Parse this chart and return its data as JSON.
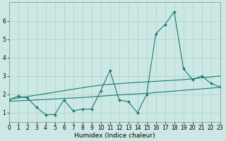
{
  "title": "",
  "xlabel": "Humidex (Indice chaleur)",
  "ylabel": "",
  "bg_color": "#cce8e4",
  "grid_color": "#aacfcb",
  "line_color": "#1a7a6e",
  "x_data": [
    0,
    1,
    2,
    3,
    4,
    5,
    6,
    7,
    8,
    9,
    10,
    11,
    12,
    13,
    14,
    15,
    16,
    17,
    18,
    19,
    20,
    21,
    22,
    23
  ],
  "y_main": [
    1.7,
    1.9,
    1.8,
    1.3,
    0.9,
    0.9,
    1.7,
    1.1,
    1.2,
    1.2,
    2.2,
    3.3,
    1.7,
    1.6,
    1.0,
    2.0,
    5.3,
    5.8,
    6.5,
    3.4,
    2.8,
    3.0,
    2.6,
    2.4
  ],
  "y_upper": [
    1.72,
    1.8,
    1.88,
    1.96,
    2.04,
    2.12,
    2.2,
    2.28,
    2.36,
    2.44,
    2.5,
    2.55,
    2.58,
    2.62,
    2.65,
    2.68,
    2.71,
    2.74,
    2.77,
    2.8,
    2.85,
    2.9,
    2.95,
    3.0
  ],
  "y_lower": [
    1.62,
    1.65,
    1.67,
    1.7,
    1.72,
    1.75,
    1.78,
    1.8,
    1.83,
    1.86,
    1.9,
    1.94,
    1.97,
    2.0,
    2.03,
    2.06,
    2.1,
    2.14,
    2.18,
    2.22,
    2.26,
    2.3,
    2.34,
    2.38
  ],
  "xlim": [
    0,
    23
  ],
  "ylim": [
    0.5,
    7.0
  ],
  "yticks": [
    1,
    2,
    3,
    4,
    5,
    6
  ],
  "xticks": [
    0,
    1,
    2,
    3,
    4,
    5,
    6,
    7,
    8,
    9,
    10,
    11,
    12,
    13,
    14,
    15,
    16,
    17,
    18,
    19,
    20,
    21,
    22,
    23
  ],
  "tick_fontsize": 5.5,
  "label_fontsize": 6.5,
  "marker_size": 2.0,
  "line_width": 0.8
}
